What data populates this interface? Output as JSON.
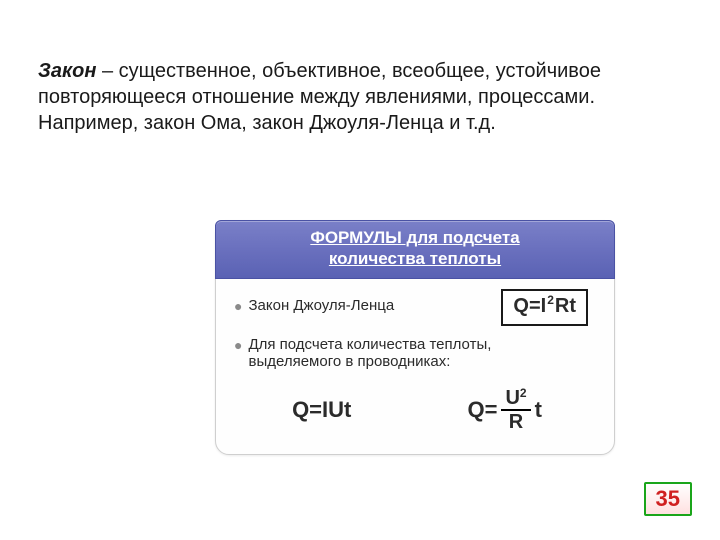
{
  "paragraph": {
    "term": "Закон",
    "definition": " – существенное, объективное, всеобщее, устойчивое повторяющееся отношение между явлениями, процессами. Например, закон Ома, закон Джоуля-Ленца и т.д."
  },
  "card": {
    "header_line1": "ФОРМУЛЫ для подсчета",
    "header_line2": "количества теплоты",
    "header_bg_top": "#7a80c8",
    "header_bg_bottom": "#5a62b4",
    "header_border": "#4a52a4",
    "body_bg": "#fefefe",
    "border_color": "#cfcfcf",
    "bullet_color": "#8a8a8a",
    "item1_text": "Закон Джоуля-Ленца",
    "formula1": {
      "text": "Q=I",
      "sup": "2",
      "tail": "Rt"
    },
    "item2_line1": "Для подсчета количества теплоты,",
    "item2_line2": "выделяемого в проводниках:",
    "formula2": "Q=IUt",
    "formula3": {
      "prefix": "Q=",
      "num_base": "U",
      "num_sup": "2",
      "den": "R",
      "suffix": "t"
    }
  },
  "page": {
    "number": "35",
    "border_color": "#1aa51a",
    "text_color": "#d02020",
    "bg_top": "#ffffff",
    "bg_bottom": "#ffe0e0"
  },
  "font": {
    "body_size": 20,
    "card_text_size": 15,
    "formula_big": 22,
    "formula_box": 20
  }
}
